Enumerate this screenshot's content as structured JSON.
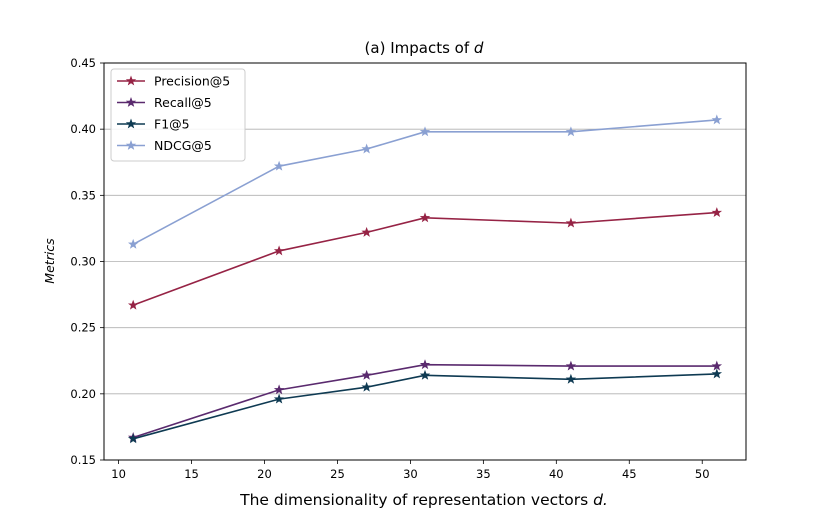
{
  "chart_data": {
    "type": "line",
    "title_prefix": "(a) Impacts of ",
    "title_var": "d",
    "xlabel_prefix": "The dimensionality of representation vectors ",
    "xlabel_var": "d.",
    "ylabel": "Metrics",
    "x": [
      11,
      21,
      27,
      31,
      41,
      51
    ],
    "xlim": [
      9.0,
      53.0
    ],
    "ylim": [
      0.15,
      0.45
    ],
    "xticks": [
      10,
      15,
      20,
      25,
      30,
      35,
      40,
      45,
      50
    ],
    "yticks": [
      0.15,
      0.2,
      0.25,
      0.3,
      0.35,
      0.4,
      0.45
    ],
    "ytick_labels": [
      "0.15",
      "0.20",
      "0.25",
      "0.30",
      "0.35",
      "0.40",
      "0.45"
    ],
    "grid": "horizontal",
    "legend_position": "top-left",
    "marker": "star",
    "series": [
      {
        "name": "Precision@5",
        "color": "#962345",
        "values": [
          0.267,
          0.308,
          0.322,
          0.333,
          0.329,
          0.337
        ]
      },
      {
        "name": "Recall@5",
        "color": "#5a2a6e",
        "values": [
          0.167,
          0.203,
          0.214,
          0.222,
          0.221,
          0.221
        ]
      },
      {
        "name": "F1@5",
        "color": "#0e3a52",
        "values": [
          0.166,
          0.196,
          0.205,
          0.214,
          0.211,
          0.215
        ]
      },
      {
        "name": "NDCG@5",
        "color": "#8aa0d2",
        "values": [
          0.313,
          0.372,
          0.385,
          0.398,
          0.398,
          0.407
        ]
      }
    ]
  }
}
